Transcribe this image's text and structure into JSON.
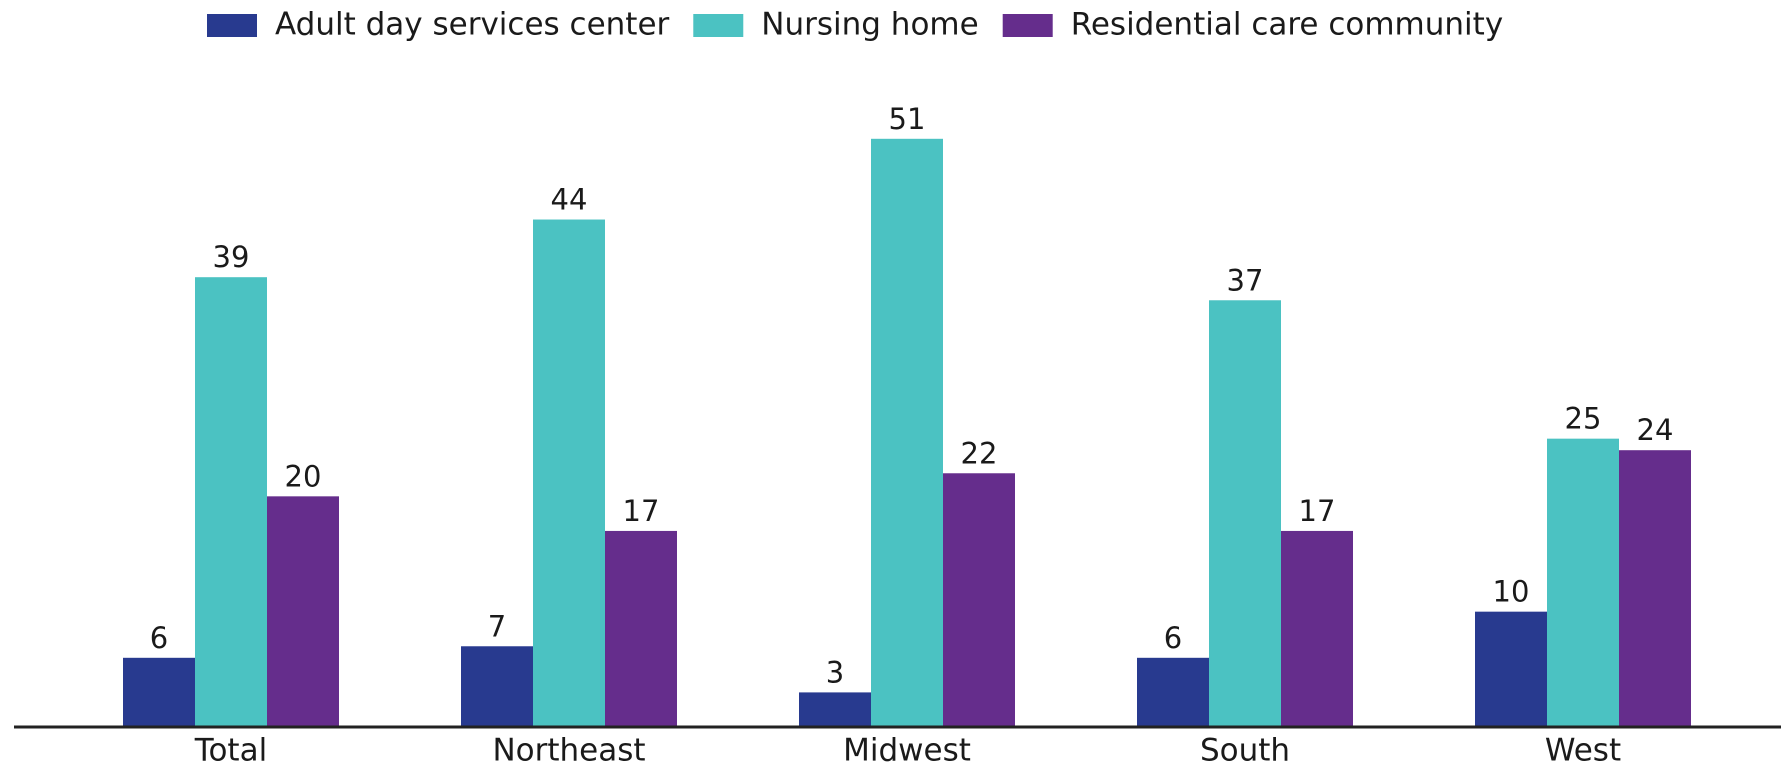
{
  "chart_data": {
    "type": "bar",
    "categories": [
      "Total",
      "Northeast",
      "Midwest",
      "South",
      "West"
    ],
    "series": [
      {
        "name": "Adult day services center",
        "color": "#283a8f",
        "values": [
          6,
          7,
          3,
          6,
          10
        ]
      },
      {
        "name": "Nursing home",
        "color": "#4bc2c2",
        "values": [
          39,
          44,
          51,
          37,
          25
        ]
      },
      {
        "name": "Residential care community",
        "color": "#652d8c",
        "values": [
          20,
          17,
          22,
          17,
          24
        ]
      }
    ],
    "ylim": [
      0,
      60
    ],
    "grid": false,
    "legend": "top"
  }
}
